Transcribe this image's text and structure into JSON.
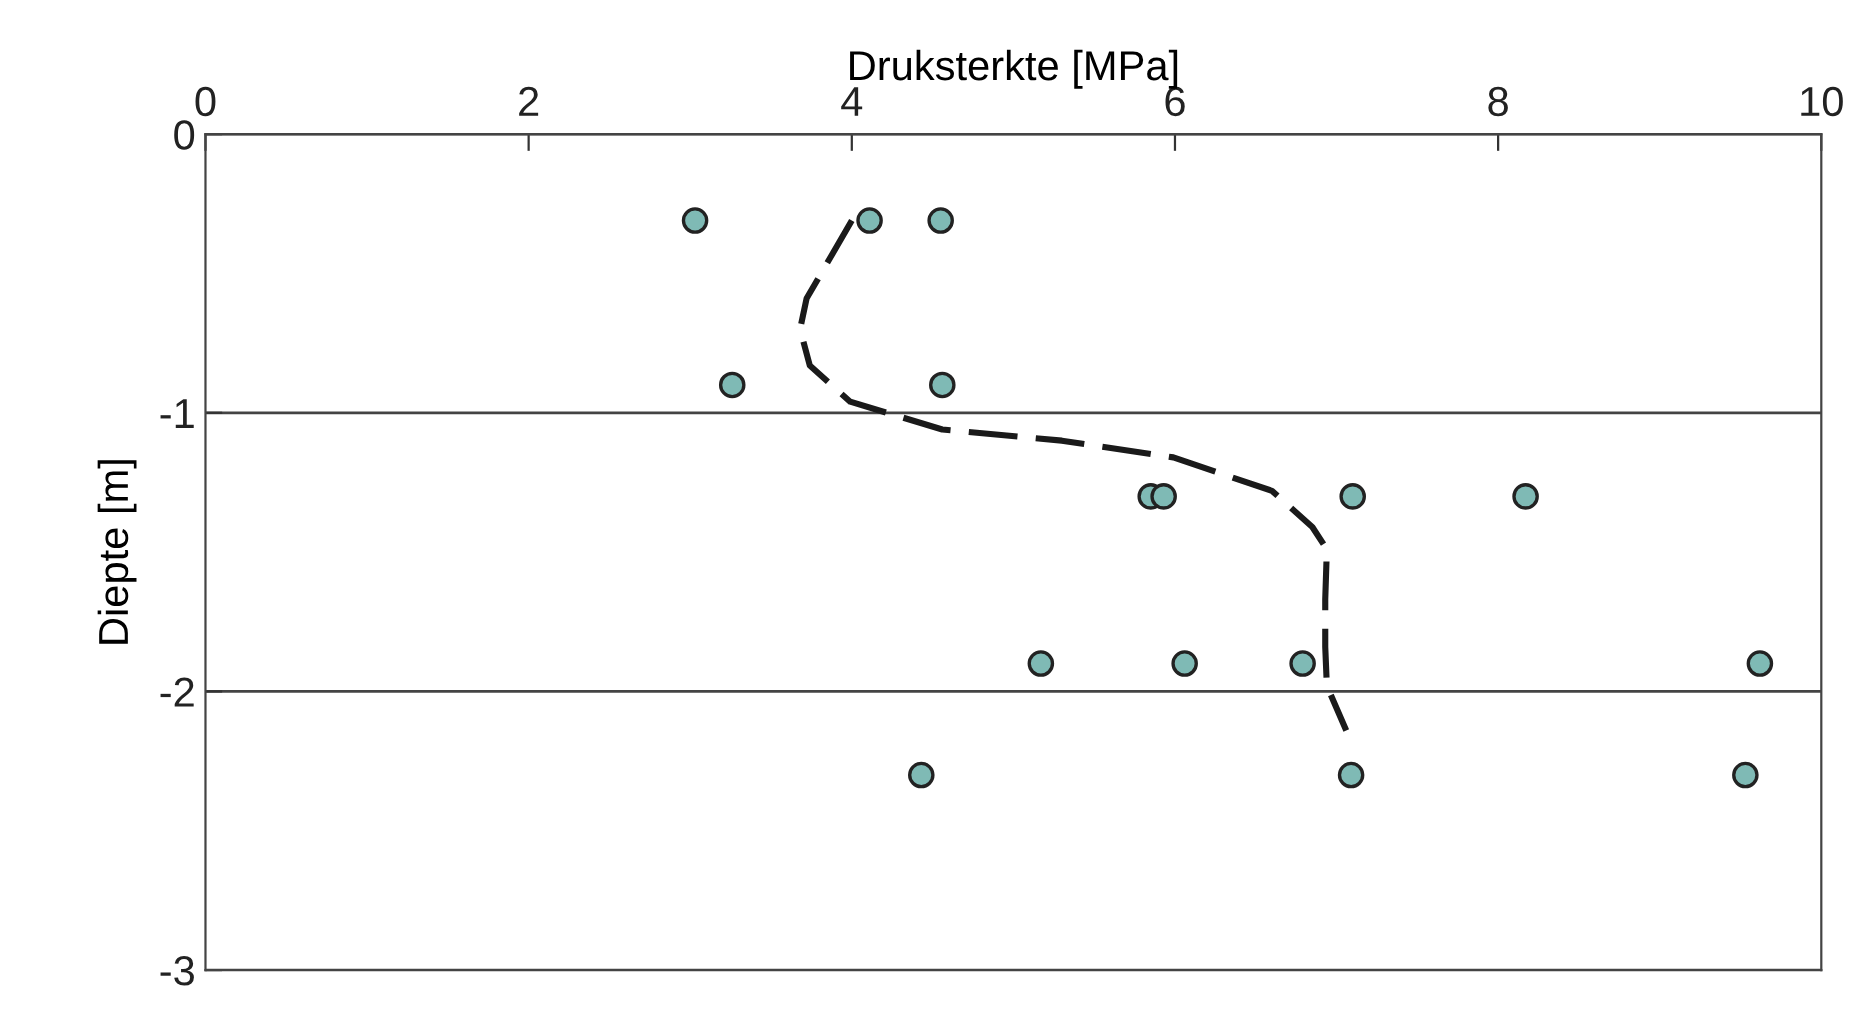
{
  "chart_data": {
    "type": "scatter",
    "xlabel": "Druksterkte [MPa]",
    "ylabel": "Diepte [m]",
    "xlim": [
      0,
      10
    ],
    "xticks": [
      0,
      2,
      4,
      6,
      8,
      10
    ],
    "ylim": [
      -3,
      0
    ],
    "yticks": [
      0,
      -1,
      -2,
      -3
    ],
    "grid": "y",
    "marker": "circle",
    "series": [
      {
        "color": "#7fbab5",
        "x": [
          3.03,
          4.11,
          4.55,
          3.26,
          4.56,
          5.85,
          5.93,
          7.1,
          8.17,
          5.17,
          6.06,
          6.79,
          9.62,
          4.43,
          7.09,
          9.53
        ],
        "values": [
          -0.31,
          -0.31,
          -0.31,
          -0.9,
          -0.9,
          -1.3,
          -1.3,
          -1.3,
          -1.3,
          -1.9,
          -1.9,
          -1.9,
          -1.9,
          -2.3,
          -2.3,
          -2.3
        ]
      },
      {
        "type": "line",
        "color": "#1a1a1a",
        "line_style": "dashed",
        "marker": "none",
        "x": [
          4.0,
          3.72,
          3.68,
          3.74,
          3.99,
          4.56,
          5.3,
          5.99,
          6.6,
          6.85,
          6.94,
          6.93,
          6.93,
          6.94,
          7.06
        ],
        "values": [
          -0.31,
          -0.59,
          -0.7,
          -0.83,
          -0.96,
          -1.06,
          -1.1,
          -1.16,
          -1.28,
          -1.41,
          -1.49,
          -1.67,
          -1.84,
          -1.98,
          -2.14
        ]
      }
    ]
  }
}
